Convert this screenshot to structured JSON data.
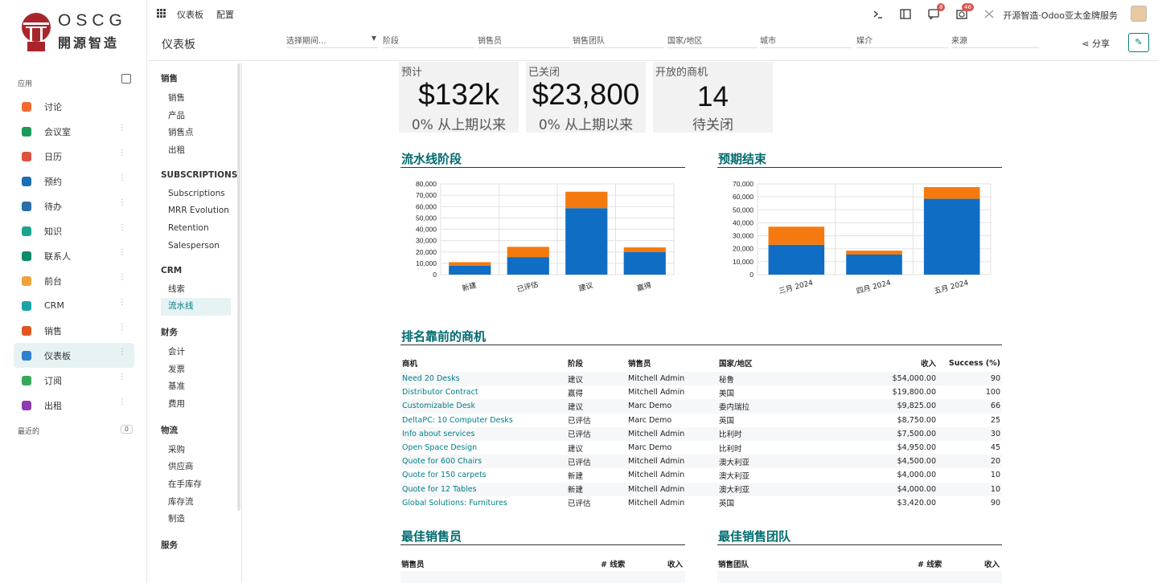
{
  "brand": {
    "logo_text": "OSCG",
    "logo_cn": "開源智造"
  },
  "sidebar": {
    "apps_label": "应用",
    "recent_label": "最近的",
    "recent_count": "0",
    "items": [
      {
        "label": "讨论",
        "color": "#f26a2e",
        "has_dots": false
      },
      {
        "label": "会议室",
        "color": "#1d9a5b",
        "has_dots": true
      },
      {
        "label": "日历",
        "color": "#e0513e",
        "has_dots": true
      },
      {
        "label": "预约",
        "color": "#1c6fb5",
        "has_dots": true
      },
      {
        "label": "待办",
        "color": "#2a6fa8",
        "has_dots": true
      },
      {
        "label": "知识",
        "color": "#1aa68e",
        "has_dots": true
      },
      {
        "label": "联系人",
        "color": "#0f8a6a",
        "has_dots": true
      },
      {
        "label": "前台",
        "color": "#f0a23a",
        "has_dots": true
      },
      {
        "label": "CRM",
        "color": "#19a5a5",
        "has_dots": true
      },
      {
        "label": "销售",
        "color": "#e2571f",
        "has_dots": true
      },
      {
        "label": "仪表板",
        "color": "#2f7fd0",
        "has_dots": true,
        "active": true
      },
      {
        "label": "订阅",
        "color": "#36a85a",
        "has_dots": true
      },
      {
        "label": "出租",
        "color": "#8e3bb0",
        "has_dots": true
      }
    ]
  },
  "topbar": {
    "menu": [
      "仪表板",
      "配置"
    ],
    "msg_badge": "8",
    "activity_badge": "46",
    "company": "开源智造·Odoo亚太金牌服务"
  },
  "control": {
    "title": "仪表板",
    "period": "选择期间...",
    "filters": [
      "阶段",
      "销售员",
      "销售团队",
      "国家/地区",
      "城市",
      "媒介",
      "来源"
    ],
    "share": "分享"
  },
  "dnav": [
    {
      "title": "销售",
      "items": [
        "销售",
        "产品",
        "销售点",
        "出租"
      ]
    },
    {
      "title": "SUBSCRIPTIONS",
      "items": [
        "Subscriptions",
        "MRR Evolution",
        "Retention",
        "Salesperson"
      ]
    },
    {
      "title": "CRM",
      "items": [
        "线索",
        "流水线"
      ],
      "active": 1
    },
    {
      "title": "财务",
      "items": [
        "会计",
        "发票",
        "基准",
        "费用"
      ]
    },
    {
      "title": "物流",
      "items": [
        "采购",
        "供应商",
        "在手库存",
        "库存流",
        "制造"
      ]
    },
    {
      "title": "服务",
      "items": []
    }
  ],
  "kpis": [
    {
      "title": "预计",
      "value": "$132k",
      "sub": "0% 从上期以来"
    },
    {
      "title": "已关闭",
      "value": "$23,800",
      "sub": "0% 从上期以来"
    },
    {
      "title": "开放的商机",
      "value": "14",
      "sub": "待关闭"
    }
  ],
  "sections": {
    "pipeline": "流水线阶段",
    "expected": "预期结束",
    "top_deals": "排名靠前的商机",
    "top_sales": "最佳销售员",
    "top_teams": "最佳销售团队"
  },
  "chart_data": [
    {
      "type": "bar",
      "stacked": true,
      "categories": [
        "新建",
        "已评估",
        "建议",
        "赢得"
      ],
      "series": [
        {
          "values": [
            8000,
            15500,
            58600,
            20000
          ],
          "color": "#0f6ec4"
        },
        {
          "values": [
            3000,
            9000,
            14500,
            4000
          ],
          "color": "#f47a10"
        }
      ],
      "ylim": [
        0,
        80000
      ],
      "yticks": [
        "80,000",
        "70,000",
        "60,000",
        "50,000",
        "40,000",
        "30,000",
        "20,000",
        "10,000",
        "0"
      ],
      "grid": true
    },
    {
      "type": "bar",
      "stacked": true,
      "categories": [
        "三月 2024",
        "四月 2024",
        "五月 2024"
      ],
      "series": [
        {
          "values": [
            23000,
            15500,
            58500
          ],
          "color": "#0f6ec4"
        },
        {
          "values": [
            14000,
            3000,
            9000
          ],
          "color": "#f47a10"
        }
      ],
      "ylim": [
        0,
        70000
      ],
      "yticks": [
        "70,000",
        "60,000",
        "50,000",
        "40,000",
        "30,000",
        "20,000",
        "10,000",
        "0"
      ],
      "grid": true
    }
  ],
  "deals": {
    "headers": [
      "商机",
      "阶段",
      "销售员",
      "国家/地区",
      "收入",
      "Success (%)"
    ],
    "rows": [
      [
        "Need 20 Desks",
        "建议",
        "Mitchell Admin",
        "秘鲁",
        "$54,000.00",
        "90"
      ],
      [
        "Distributor Contract",
        "赢得",
        "Mitchell Admin",
        "美国",
        "$19,800.00",
        "100"
      ],
      [
        "Customizable Desk",
        "建议",
        "Marc Demo",
        "委内瑞拉",
        "$9,825.00",
        "66"
      ],
      [
        "DeltaPC: 10 Computer Desks",
        "已评估",
        "Marc Demo",
        "英国",
        "$8,750.00",
        "25"
      ],
      [
        "Info about services",
        "已评估",
        "Mitchell Admin",
        "比利时",
        "$7,500.00",
        "30"
      ],
      [
        "Open Space Design",
        "建议",
        "Marc Demo",
        "比利时",
        "$4,950.00",
        "45"
      ],
      [
        "Quote for 600 Chairs",
        "已评估",
        "Mitchell Admin",
        "澳大利亚",
        "$4,500.00",
        "20"
      ],
      [
        "Quote for 150 carpets",
        "新建",
        "Mitchell Admin",
        "澳大利亚",
        "$4,000.00",
        "10"
      ],
      [
        "Quote for 12 Tables",
        "新建",
        "Mitchell Admin",
        "澳大利亚",
        "$4,000.00",
        "10"
      ],
      [
        "Global Solutions: Furnitures",
        "已评估",
        "Mitchell Admin",
        "英国",
        "$3,420.00",
        "90"
      ]
    ]
  },
  "sales_table": {
    "headers": [
      "销售员",
      "# 线索",
      "收入"
    ]
  },
  "teams_table": {
    "headers": [
      "销售团队",
      "# 线索",
      "收入"
    ]
  }
}
